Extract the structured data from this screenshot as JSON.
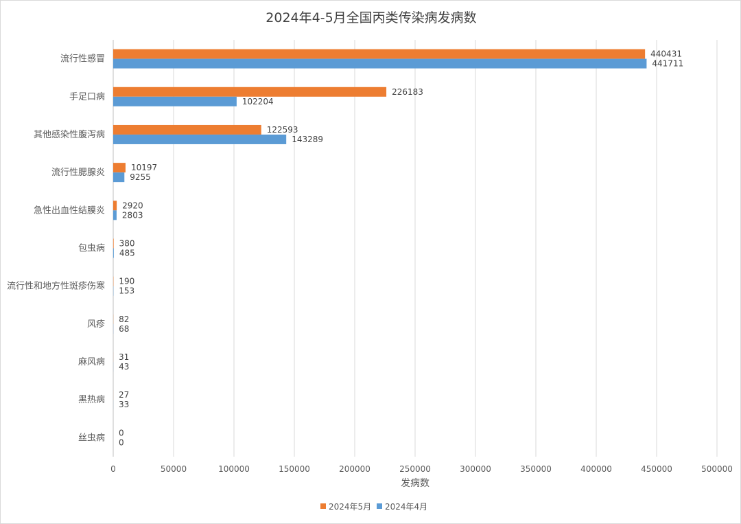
{
  "chart_data": {
    "type": "bar",
    "orientation": "horizontal",
    "title": "2024年4-5月全国丙类传染病发病数",
    "xlabel": "发病数",
    "ylabel": "",
    "xlim": [
      0,
      500000
    ],
    "x_ticks": [
      "0",
      "50000",
      "100000",
      "150000",
      "200000",
      "250000",
      "300000",
      "350000",
      "400000",
      "450000",
      "500000"
    ],
    "categories": [
      "流行性感冒",
      "手足口病",
      "其他感染性腹泻病",
      "流行性腮腺炎",
      "急性出血性结膜炎",
      "包虫病",
      "流行性和地方性斑疹伤寒",
      "风疹",
      "麻风病",
      "黑热病",
      "丝虫病"
    ],
    "series": [
      {
        "name": "2024年5月",
        "color": "#ED7D31",
        "values": [
          440431,
          226183,
          122593,
          10197,
          2920,
          380,
          190,
          82,
          31,
          27,
          0
        ]
      },
      {
        "name": "2024年4月",
        "color": "#5B9BD5",
        "values": [
          441711,
          102204,
          143289,
          9255,
          2803,
          485,
          153,
          68,
          43,
          33,
          0
        ]
      }
    ],
    "grid": "vertical",
    "legend": "bottom-center"
  }
}
